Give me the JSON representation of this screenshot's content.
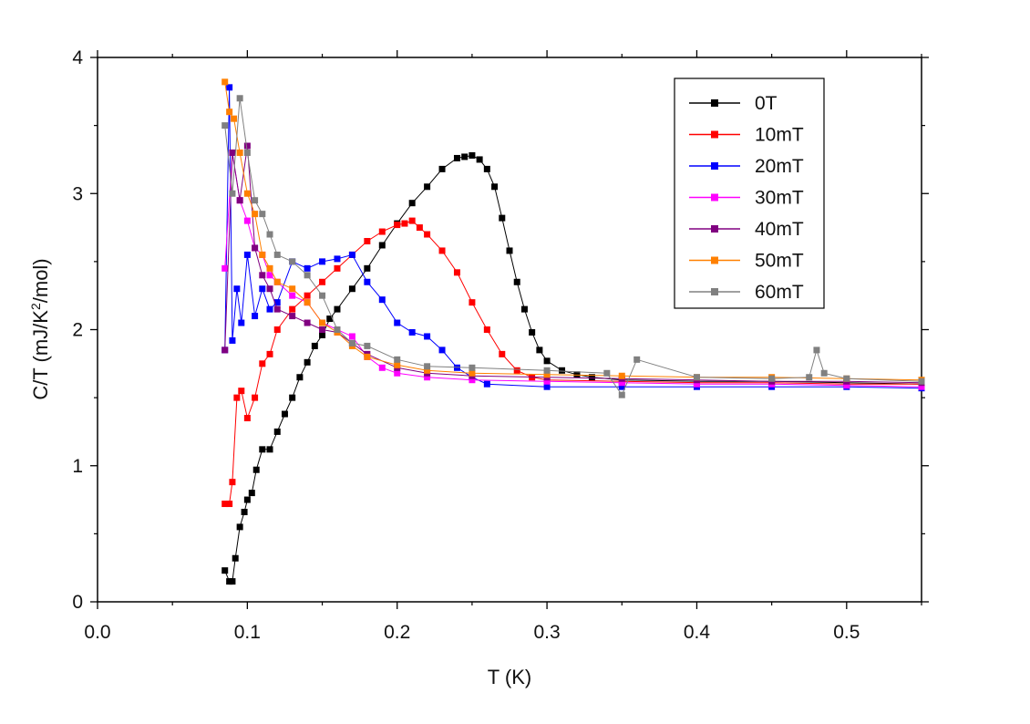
{
  "chart_data": {
    "type": "line",
    "title": "",
    "xlabel": "T (K)",
    "ylabel": "C/T (mJ/K²/mol)",
    "ylabel_main": "C/T (mJ/K",
    "ylabel_sup": "2",
    "ylabel_tail": "/mol)",
    "xlim": [
      0.0,
      0.55
    ],
    "ylim": [
      0,
      4
    ],
    "x_ticks": [
      0.0,
      0.1,
      0.2,
      0.3,
      0.4,
      0.5
    ],
    "x_tick_labels": [
      "0.0",
      "0.1",
      "0.2",
      "0.3",
      "0.4",
      "0.5"
    ],
    "y_ticks": [
      0,
      1,
      2,
      3,
      4
    ],
    "y_tick_labels": [
      "0",
      "1",
      "2",
      "3",
      "4"
    ],
    "legend_position": "top-right",
    "grid": false,
    "series": [
      {
        "name": "0T",
        "color": "#000000",
        "x": [
          0.085,
          0.088,
          0.09,
          0.092,
          0.095,
          0.098,
          0.1,
          0.103,
          0.106,
          0.11,
          0.115,
          0.12,
          0.125,
          0.13,
          0.135,
          0.14,
          0.145,
          0.15,
          0.155,
          0.16,
          0.17,
          0.18,
          0.19,
          0.2,
          0.21,
          0.22,
          0.23,
          0.24,
          0.245,
          0.25,
          0.255,
          0.26,
          0.265,
          0.27,
          0.275,
          0.28,
          0.285,
          0.29,
          0.295,
          0.3,
          0.31,
          0.32,
          0.33,
          0.35,
          0.4,
          0.45,
          0.5,
          0.55
        ],
        "y": [
          0.23,
          0.15,
          0.15,
          0.32,
          0.55,
          0.66,
          0.75,
          0.8,
          0.97,
          1.12,
          1.12,
          1.25,
          1.38,
          1.5,
          1.65,
          1.76,
          1.88,
          1.96,
          2.08,
          2.15,
          2.3,
          2.45,
          2.62,
          2.78,
          2.93,
          3.05,
          3.18,
          3.26,
          3.27,
          3.28,
          3.25,
          3.18,
          3.05,
          2.82,
          2.58,
          2.35,
          2.15,
          1.98,
          1.85,
          1.77,
          1.7,
          1.67,
          1.65,
          1.63,
          1.62,
          1.62,
          1.61,
          1.6
        ]
      },
      {
        "name": "10mT",
        "color": "#ff0000",
        "x": [
          0.085,
          0.088,
          0.09,
          0.093,
          0.096,
          0.1,
          0.105,
          0.11,
          0.115,
          0.12,
          0.13,
          0.14,
          0.15,
          0.16,
          0.17,
          0.18,
          0.19,
          0.2,
          0.205,
          0.21,
          0.215,
          0.22,
          0.23,
          0.24,
          0.25,
          0.26,
          0.27,
          0.28,
          0.29,
          0.3,
          0.35,
          0.4,
          0.45,
          0.5,
          0.55
        ],
        "y": [
          0.72,
          0.72,
          0.88,
          1.5,
          1.55,
          1.35,
          1.5,
          1.75,
          1.82,
          2.0,
          2.15,
          2.25,
          2.35,
          2.45,
          2.55,
          2.65,
          2.72,
          2.77,
          2.78,
          2.8,
          2.75,
          2.7,
          2.58,
          2.42,
          2.2,
          2.0,
          1.82,
          1.7,
          1.65,
          1.63,
          1.62,
          1.61,
          1.61,
          1.6,
          1.6
        ]
      },
      {
        "name": "20mT",
        "color": "#0000ff",
        "x": [
          0.085,
          0.088,
          0.09,
          0.093,
          0.096,
          0.1,
          0.105,
          0.11,
          0.115,
          0.12,
          0.13,
          0.14,
          0.15,
          0.16,
          0.17,
          0.18,
          0.19,
          0.2,
          0.21,
          0.22,
          0.23,
          0.24,
          0.25,
          0.26,
          0.3,
          0.35,
          0.4,
          0.45,
          0.5,
          0.55
        ],
        "y": [
          1.85,
          3.78,
          1.92,
          2.3,
          2.05,
          2.55,
          2.1,
          2.3,
          2.15,
          2.2,
          2.5,
          2.45,
          2.5,
          2.52,
          2.55,
          2.35,
          2.22,
          2.05,
          1.98,
          1.95,
          1.85,
          1.72,
          1.65,
          1.6,
          1.58,
          1.58,
          1.58,
          1.58,
          1.58,
          1.57
        ]
      },
      {
        "name": "30mT",
        "color": "#ff00ff",
        "x": [
          0.085,
          0.09,
          0.095,
          0.1,
          0.105,
          0.11,
          0.115,
          0.12,
          0.13,
          0.14,
          0.15,
          0.16,
          0.17,
          0.18,
          0.19,
          0.2,
          0.22,
          0.25,
          0.3,
          0.35,
          0.4,
          0.45,
          0.5,
          0.55
        ],
        "y": [
          2.45,
          3.3,
          2.95,
          2.8,
          2.6,
          2.55,
          2.4,
          2.35,
          2.25,
          2.2,
          2.05,
          2.0,
          1.95,
          1.8,
          1.72,
          1.68,
          1.65,
          1.63,
          1.62,
          1.61,
          1.6,
          1.6,
          1.59,
          1.58
        ]
      },
      {
        "name": "40mT",
        "color": "#800080",
        "x": [
          0.085,
          0.09,
          0.095,
          0.1,
          0.105,
          0.11,
          0.115,
          0.12,
          0.13,
          0.14,
          0.15,
          0.16,
          0.17,
          0.18,
          0.2,
          0.22,
          0.25,
          0.3,
          0.35,
          0.4,
          0.45,
          0.5,
          0.55
        ],
        "y": [
          1.85,
          3.3,
          2.95,
          3.35,
          2.6,
          2.4,
          2.3,
          2.15,
          2.1,
          2.05,
          2.0,
          1.98,
          1.9,
          1.82,
          1.72,
          1.68,
          1.66,
          1.65,
          1.64,
          1.63,
          1.62,
          1.62,
          1.61
        ]
      },
      {
        "name": "50mT",
        "color": "#ff8000",
        "x": [
          0.085,
          0.088,
          0.091,
          0.095,
          0.1,
          0.105,
          0.11,
          0.115,
          0.12,
          0.13,
          0.14,
          0.15,
          0.16,
          0.17,
          0.18,
          0.2,
          0.22,
          0.25,
          0.3,
          0.35,
          0.4,
          0.45,
          0.5,
          0.55
        ],
        "y": [
          3.82,
          3.6,
          3.55,
          3.3,
          3.0,
          2.85,
          2.55,
          2.45,
          2.35,
          2.3,
          2.2,
          2.05,
          1.98,
          1.88,
          1.8,
          1.74,
          1.7,
          1.68,
          1.67,
          1.66,
          1.65,
          1.65,
          1.64,
          1.63
        ]
      },
      {
        "name": "60mT",
        "color": "#808080",
        "x": [
          0.085,
          0.09,
          0.095,
          0.1,
          0.105,
          0.11,
          0.115,
          0.12,
          0.13,
          0.14,
          0.15,
          0.16,
          0.17,
          0.18,
          0.2,
          0.22,
          0.25,
          0.3,
          0.34,
          0.35,
          0.36,
          0.4,
          0.45,
          0.475,
          0.48,
          0.485,
          0.5,
          0.55
        ],
        "y": [
          3.5,
          3.0,
          3.7,
          3.3,
          2.95,
          2.85,
          2.7,
          2.55,
          2.5,
          2.4,
          2.25,
          2.0,
          1.9,
          1.88,
          1.78,
          1.73,
          1.72,
          1.7,
          1.68,
          1.52,
          1.78,
          1.65,
          1.64,
          1.65,
          1.85,
          1.68,
          1.64,
          1.62
        ]
      }
    ]
  }
}
